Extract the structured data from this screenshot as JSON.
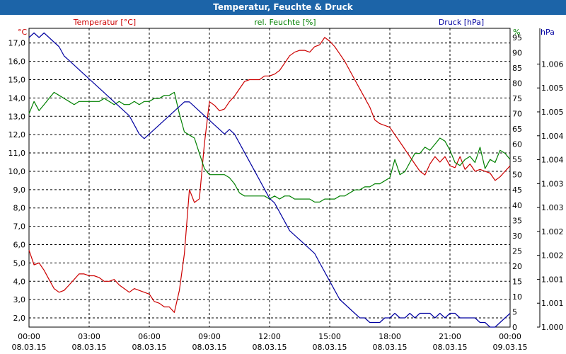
{
  "window": {
    "title": "Temperatur, Feuchte & Druck"
  },
  "colors": {
    "temperature": "#cc0000",
    "humidity": "#008000",
    "pressure": "#0000a0",
    "grid": "#000000",
    "title_bg": "#1c64a8"
  },
  "chart_data": {
    "type": "line",
    "title": "Temperatur, Feuchte & Druck",
    "x_hours": [
      0,
      0.25,
      0.5,
      0.75,
      1,
      1.25,
      1.5,
      1.75,
      2,
      2.25,
      2.5,
      2.75,
      3,
      3.25,
      3.5,
      3.75,
      4,
      4.25,
      4.5,
      4.75,
      5,
      5.25,
      5.5,
      5.75,
      6,
      6.25,
      6.5,
      6.75,
      7,
      7.25,
      7.5,
      7.75,
      8,
      8.25,
      8.5,
      8.75,
      9,
      9.25,
      9.5,
      9.75,
      10,
      10.25,
      10.5,
      10.75,
      11,
      11.25,
      11.5,
      11.75,
      12,
      12.25,
      12.5,
      12.75,
      13,
      13.25,
      13.5,
      13.75,
      14,
      14.25,
      14.5,
      14.75,
      15,
      15.25,
      15.5,
      15.75,
      16,
      16.25,
      16.5,
      16.75,
      17,
      17.25,
      17.5,
      17.75,
      18,
      18.25,
      18.5,
      18.75,
      19,
      19.25,
      19.5,
      19.75,
      20,
      20.25,
      20.5,
      20.75,
      21,
      21.25,
      21.5,
      21.75,
      22,
      22.25,
      22.5,
      22.75,
      23,
      23.25,
      23.5,
      23.75,
      24
    ],
    "x_ticks": [
      {
        "time": "00:00",
        "date": "08.03.15"
      },
      {
        "time": "03:00",
        "date": "08.03.15"
      },
      {
        "time": "06:00",
        "date": "08.03.15"
      },
      {
        "time": "09:00",
        "date": "08.03.15"
      },
      {
        "time": "12:00",
        "date": "08.03.15"
      },
      {
        "time": "15:00",
        "date": "08.03.15"
      },
      {
        "time": "18:00",
        "date": "08.03.15"
      },
      {
        "time": "21:00",
        "date": "08.03.15"
      },
      {
        "time": "00:00",
        "date": "09.03.15"
      }
    ],
    "axes": {
      "temperature": {
        "label": "Temperatur [°C]",
        "unit": "°C",
        "ylim": [
          1.5,
          17.8
        ],
        "ticks": [
          "2,0",
          "3,0",
          "4,0",
          "5,0",
          "6,0",
          "7,0",
          "8,0",
          "9,0",
          "10,0",
          "11,0",
          "12,0",
          "13,0",
          "14,0",
          "15,0",
          "16,0",
          "17,0"
        ]
      },
      "humidity": {
        "label": "rel. Feuchte [%]",
        "unit": "%",
        "ylim": [
          0,
          98
        ],
        "ticks": [
          "0",
          "5",
          "10",
          "15",
          "20",
          "25",
          "30",
          "35",
          "40",
          "45",
          "50",
          "55",
          "60",
          "65",
          "70",
          "75",
          "80",
          "85",
          "90",
          "95"
        ]
      },
      "pressure": {
        "label": "Druck [hPa]",
        "unit": "hPa",
        "ylim": [
          1.0,
          1.0065
        ],
        "ticks": [
          "1.000",
          "1.001",
          "1.001",
          "1.002",
          "1.002",
          "1.003",
          "1.003",
          "1.004",
          "1.004",
          "1.005",
          "1.005",
          "1.006"
        ]
      }
    },
    "series": [
      {
        "name": "Temperatur",
        "axis": "temperature",
        "values": [
          5.7,
          4.9,
          5.0,
          4.6,
          4.1,
          3.6,
          3.4,
          3.5,
          3.8,
          4.1,
          4.4,
          4.4,
          4.3,
          4.3,
          4.2,
          4.0,
          4.0,
          4.1,
          3.8,
          3.6,
          3.4,
          3.6,
          3.5,
          3.4,
          3.3,
          2.9,
          2.8,
          2.6,
          2.6,
          2.3,
          3.5,
          5.5,
          9.0,
          8.3,
          8.5,
          11.5,
          13.8,
          13.6,
          13.3,
          13.4,
          13.8,
          14.1,
          14.5,
          14.9,
          15.0,
          15.0,
          15.0,
          15.2,
          15.2,
          15.3,
          15.5,
          15.9,
          16.3,
          16.5,
          16.6,
          16.6,
          16.5,
          16.8,
          16.9,
          17.3,
          17.1,
          16.8,
          16.4,
          16.0,
          15.5,
          15.0,
          14.5,
          14.0,
          13.5,
          12.8,
          12.6,
          12.5,
          12.4,
          12.0,
          11.6,
          11.2,
          10.8,
          10.4,
          10.0,
          9.8,
          10.4,
          10.8,
          10.5,
          10.8,
          10.3,
          10.2,
          10.8,
          10.1,
          10.4,
          10.0,
          10.1,
          10.0,
          9.9,
          9.5,
          9.7,
          10.0,
          10.3
        ],
        "color": "#cc0000"
      },
      {
        "name": "rel. Feuchte",
        "axis": "humidity",
        "values": [
          70,
          74,
          71,
          73,
          75,
          77,
          76,
          75,
          74,
          73,
          74,
          74,
          74,
          74,
          74,
          75,
          74,
          73,
          74,
          73,
          73,
          74,
          73,
          74,
          74,
          75,
          75,
          76,
          76,
          77,
          70,
          64,
          63,
          62,
          57,
          52,
          50,
          50,
          50,
          50,
          49,
          47,
          44,
          43,
          43,
          43,
          43,
          43,
          42,
          43,
          42,
          43,
          43,
          42,
          42,
          42,
          42,
          41,
          41,
          42,
          42,
          42,
          43,
          43,
          44,
          45,
          45,
          46,
          46,
          47,
          47,
          48,
          49,
          55,
          50,
          51,
          54,
          57,
          57,
          59,
          58,
          60,
          62,
          61,
          58,
          54,
          53,
          55,
          56,
          54,
          59,
          52,
          55,
          54,
          58,
          57,
          55
        ],
        "color": "#008000"
      },
      {
        "name": "Druck",
        "axis": "pressure",
        "values": [
          1.0063,
          1.0064,
          1.0063,
          1.0064,
          1.0063,
          1.0062,
          1.0061,
          1.0059,
          1.0058,
          1.0057,
          1.0056,
          1.0055,
          1.0054,
          1.0053,
          1.0052,
          1.0051,
          1.005,
          1.0049,
          1.0048,
          1.0047,
          1.0046,
          1.0044,
          1.0042,
          1.0041,
          1.0042,
          1.0043,
          1.0044,
          1.0045,
          1.0046,
          1.0047,
          1.0048,
          1.0049,
          1.0049,
          1.0048,
          1.0047,
          1.0046,
          1.0045,
          1.0044,
          1.0043,
          1.0042,
          1.0043,
          1.0042,
          1.004,
          1.0038,
          1.0036,
          1.0034,
          1.0032,
          1.003,
          1.0028,
          1.0027,
          1.0025,
          1.0023,
          1.0021,
          1.002,
          1.0019,
          1.0018,
          1.0017,
          1.0016,
          1.0014,
          1.0012,
          1.001,
          1.0008,
          1.0006,
          1.0005,
          1.0004,
          1.0003,
          1.0002,
          1.0002,
          1.0001,
          1.0001,
          1.0001,
          1.0002,
          1.0002,
          1.0003,
          1.0002,
          1.0002,
          1.0003,
          1.0002,
          1.0003,
          1.0003,
          1.0003,
          1.0002,
          1.0003,
          1.0002,
          1.0003,
          1.0003,
          1.0002,
          1.0002,
          1.0002,
          1.0002,
          1.0001,
          1.0001,
          1.0,
          1.0,
          1.0001,
          1.0002,
          1.0003
        ],
        "color": "#0000a0"
      }
    ]
  }
}
